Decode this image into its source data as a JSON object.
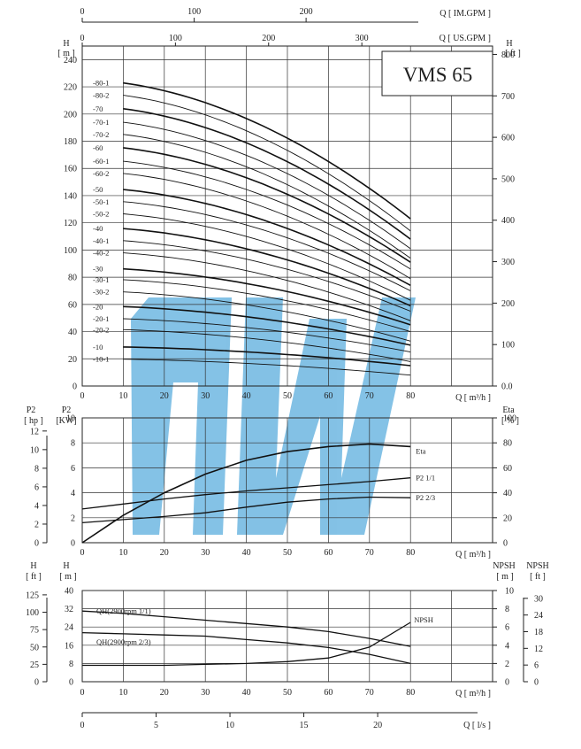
{
  "chart_data": [
    {
      "type": "line",
      "panel": "head-curves",
      "title": "VMS 65",
      "x_axis": {
        "label": "Q [ m³/h ]",
        "ticks": [
          0,
          10,
          20,
          30,
          40,
          50,
          60,
          70,
          80
        ],
        "range": [
          0,
          100
        ]
      },
      "y_axis_left": {
        "label": "H",
        "unit": "[ m ]",
        "ticks": [
          0,
          20,
          40,
          60,
          80,
          100,
          120,
          140,
          160,
          180,
          200,
          220,
          240
        ],
        "range": [
          0,
          250
        ]
      },
      "y_axis_right": {
        "label": "H",
        "unit": "[ ft ]",
        "ticks": [
          "0.0",
          "100",
          "200",
          "300",
          "400",
          "500",
          "600",
          "700",
          "800"
        ],
        "tick_values_m": [
          0,
          30.48,
          60.96,
          91.44,
          121.92,
          152.4,
          182.88,
          213.36,
          243.84
        ]
      },
      "top_axis_usgpm": {
        "label": "Q [ US.GPM ]",
        "ticks": [
          "0",
          "100",
          "200",
          "300"
        ],
        "tick_values_m3h": [
          0,
          22.71,
          45.42,
          68.14
        ]
      },
      "top_axis_imgpm": {
        "label": "Q [ IM.GPM ]",
        "ticks": [
          "0",
          "100",
          "200"
        ],
        "tick_values_m3h": [
          0,
          27.28,
          54.55
        ]
      },
      "grid": true,
      "series": [
        {
          "name": "-80-1",
          "shutoff": 225,
          "end": 123,
          "heavy": true
        },
        {
          "name": "-80-2",
          "shutoff": 216,
          "end": 114,
          "heavy": false
        },
        {
          "name": "-70",
          "shutoff": 206,
          "end": 108,
          "heavy": true
        },
        {
          "name": "-70-1",
          "shutoff": 196,
          "end": 101,
          "heavy": false
        },
        {
          "name": "-70-2",
          "shutoff": 187,
          "end": 94,
          "heavy": false
        },
        {
          "name": "-60",
          "shutoff": 177,
          "end": 91,
          "heavy": true
        },
        {
          "name": "-60-1",
          "shutoff": 167,
          "end": 86,
          "heavy": false
        },
        {
          "name": "-60-2",
          "shutoff": 158,
          "end": 79,
          "heavy": false
        },
        {
          "name": "-50",
          "shutoff": 146,
          "end": 74,
          "heavy": true
        },
        {
          "name": "-50-1",
          "shutoff": 137,
          "end": 70,
          "heavy": false
        },
        {
          "name": "-50-2",
          "shutoff": 128,
          "end": 63,
          "heavy": false
        },
        {
          "name": "-40",
          "shutoff": 117,
          "end": 59,
          "heavy": true
        },
        {
          "name": "-40-1",
          "shutoff": 108,
          "end": 55,
          "heavy": false
        },
        {
          "name": "-40-2",
          "shutoff": 99,
          "end": 48,
          "heavy": false
        },
        {
          "name": "-30",
          "shutoff": 87,
          "end": 45,
          "heavy": true
        },
        {
          "name": "-30-1",
          "shutoff": 79,
          "end": 40,
          "heavy": false
        },
        {
          "name": "-30-2",
          "shutoff": 70,
          "end": 33,
          "heavy": false
        },
        {
          "name": "-20",
          "shutoff": 59,
          "end": 30,
          "heavy": true
        },
        {
          "name": "-20-1",
          "shutoff": 50,
          "end": 25,
          "heavy": false
        },
        {
          "name": "-20-2",
          "shutoff": 42,
          "end": 18,
          "heavy": false
        },
        {
          "name": "-10",
          "shutoff": 29,
          "end": 15,
          "heavy": true
        },
        {
          "name": "-10-1",
          "shutoff": 20,
          "end": 8,
          "heavy": false
        }
      ]
    },
    {
      "type": "line",
      "panel": "power-efficiency",
      "x_axis": {
        "label": "Q [ m³/h ]",
        "ticks": [
          0,
          10,
          20,
          30,
          40,
          50,
          60,
          70,
          80
        ],
        "range": [
          0,
          100
        ]
      },
      "y_axis_left_hp": {
        "label": "P2",
        "unit": "[ hp ]",
        "ticks": [
          0,
          2,
          4,
          6,
          8,
          10,
          12
        ]
      },
      "y_axis_left_kw": {
        "label": "P2",
        "unit": "[KW]",
        "ticks": [
          0,
          2,
          4,
          6,
          8,
          10
        ],
        "range": [
          0,
          10
        ]
      },
      "y_axis_right": {
        "label": "Eta",
        "unit": "[ % ]",
        "ticks": [
          0,
          20,
          40,
          60,
          80,
          100
        ],
        "range": [
          0,
          100
        ]
      },
      "grid": true,
      "series": [
        {
          "name": "Eta",
          "axis": "eta",
          "x": [
            0,
            10,
            20,
            30,
            40,
            50,
            60,
            70,
            80
          ],
          "y": [
            0,
            22,
            40,
            55,
            66,
            73,
            77,
            79,
            77
          ]
        },
        {
          "name": "P2  1/1",
          "axis": "kw",
          "x": [
            0,
            10,
            20,
            30,
            40,
            50,
            60,
            70,
            80
          ],
          "y": [
            2.7,
            3.1,
            3.5,
            3.85,
            4.15,
            4.4,
            4.65,
            4.9,
            5.2
          ]
        },
        {
          "name": "P2  2/3",
          "axis": "kw",
          "x": [
            0,
            10,
            20,
            30,
            40,
            50,
            60,
            70,
            80
          ],
          "y": [
            1.6,
            1.85,
            2.1,
            2.4,
            2.85,
            3.25,
            3.5,
            3.65,
            3.6
          ]
        }
      ]
    },
    {
      "type": "line",
      "panel": "qh-npsh",
      "x_axis": {
        "label": "Q [ m³/h ]",
        "ticks": [
          0,
          10,
          20,
          30,
          40,
          50,
          60,
          70,
          80
        ],
        "range": [
          0,
          100
        ]
      },
      "y_axis_left_ft": {
        "label": "H",
        "unit": "[ ft ]",
        "ticks": [
          0,
          25,
          50,
          75,
          100,
          125
        ]
      },
      "y_axis_left_m": {
        "label": "H",
        "unit": "[ m ]",
        "ticks": [
          0,
          8,
          16,
          24,
          32,
          40
        ],
        "range": [
          0,
          40
        ]
      },
      "y_axis_npsh_m": {
        "label": "NPSH",
        "unit": "[ m ]",
        "ticks": [
          0,
          2,
          4,
          6,
          8,
          10
        ],
        "range": [
          0,
          10
        ]
      },
      "y_axis_npsh_ft": {
        "label": "NPSH",
        "unit": "[ ft ]",
        "ticks": [
          0,
          6,
          12,
          18,
          24,
          30
        ]
      },
      "bottom_axis_ls": {
        "label": "Q [ l/s ]",
        "ticks": [
          0,
          5,
          10,
          15,
          20
        ]
      },
      "grid": true,
      "series": [
        {
          "name": "QH(2900rpm 1/1)",
          "axis": "m",
          "x": [
            0,
            10,
            20,
            30,
            40,
            50,
            60,
            70,
            80
          ],
          "y": [
            31,
            30,
            28.5,
            27,
            25.5,
            24,
            22,
            19,
            15.5
          ]
        },
        {
          "name": "QH(2900rpm 2/3)",
          "axis": "m",
          "x": [
            0,
            10,
            20,
            30,
            40,
            50,
            60,
            70,
            80
          ],
          "y": [
            21.5,
            21,
            20.5,
            20,
            18.5,
            17,
            15,
            12,
            8
          ]
        },
        {
          "name": "NPSH",
          "axis": "npsh",
          "x": [
            0,
            10,
            20,
            30,
            40,
            50,
            60,
            70,
            80
          ],
          "y": [
            1.8,
            1.8,
            1.8,
            1.9,
            2.0,
            2.2,
            2.6,
            3.8,
            6.5
          ]
        }
      ]
    }
  ]
}
